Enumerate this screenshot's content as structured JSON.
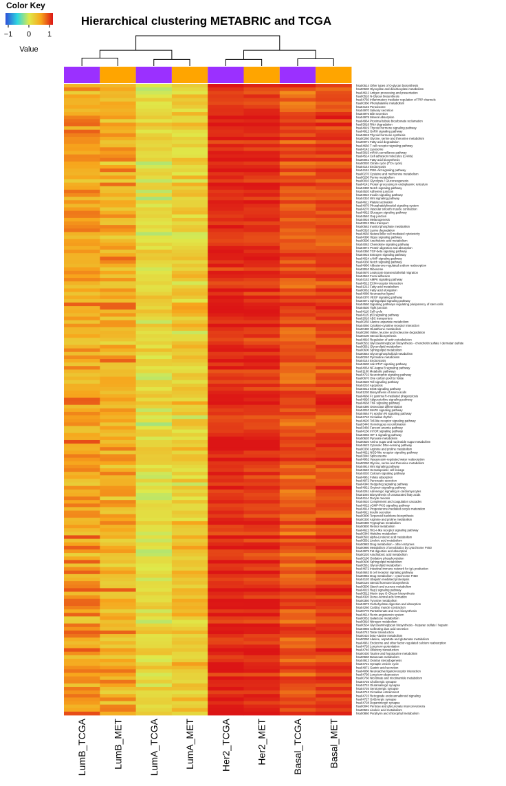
{
  "color_key": {
    "title": "Color Key",
    "ticks": [
      "−1",
      "0",
      "1"
    ],
    "value_label": "Value",
    "gradient": [
      "#2f4fd8",
      "#2fd7e0",
      "#dfe94a",
      "#f7a51c",
      "#dc1515"
    ]
  },
  "chart_data": {
    "type": "heatmap",
    "title": "Hierarchical clustering METABRIC and TCGA",
    "columns": [
      "LumB_TCGA",
      "LumB_MET",
      "LumA_TCGA",
      "LumA_MET",
      "Her2_TCGA",
      "Her2_MET",
      "Basal_TCGA",
      "Basal_MET"
    ],
    "column_groups": [
      "TCGA",
      "MET",
      "TCGA",
      "MET",
      "TCGA",
      "MET",
      "TCGA",
      "MET"
    ],
    "group_colors": {
      "TCGA": "#9b30ff",
      "MET": "#ffa500"
    },
    "value_range": [
      -1,
      1
    ],
    "colormap": [
      "#2f4fd8",
      "#2fd7e0",
      "#dfe94a",
      "#f7a51c",
      "#dc1515"
    ],
    "dendrogram": {
      "leaves": [
        "LumB_TCGA",
        "LumB_MET",
        "LumA_TCGA",
        "LumA_MET",
        "Her2_TCGA",
        "Her2_MET",
        "Basal_TCGA",
        "Basal_MET"
      ],
      "merges": [
        {
          "a": 0,
          "b": 1,
          "height": 0.26
        },
        {
          "a": 2,
          "b": 3,
          "height": 0.22
        },
        {
          "a": 4,
          "b": 5,
          "height": 0.22
        },
        {
          "a": 6,
          "b": 7,
          "height": 0.24
        },
        {
          "a": 8,
          "b": 9,
          "height": 0.52
        },
        {
          "a": 10,
          "b": 11,
          "height": 0.52
        },
        {
          "a": 12,
          "b": 13,
          "height": 1.0
        }
      ]
    },
    "column_profiles": {
      "LumB_TCGA": {
        "mean": 0.5,
        "spread": 0.22
      },
      "LumB_MET": {
        "mean": 0.42,
        "spread": 0.24
      },
      "LumA_TCGA": {
        "mean": 0.1,
        "spread": 0.18
      },
      "LumA_MET": {
        "mean": 0.22,
        "spread": 0.22
      },
      "Her2_TCGA": {
        "mean": 0.93,
        "spread": 0.05
      },
      "Her2_MET": {
        "mean": 0.91,
        "spread": 0.06
      },
      "Basal_TCGA": {
        "mean": 0.78,
        "spread": 0.1
      },
      "Basal_MET": {
        "mean": 0.83,
        "spread": 0.09
      }
    },
    "rows": [
      "hsa00514 Other types of O-glycan biosynthesis",
      "hsa00630 Glyoxylate and dicarboxylate metabolism",
      "hsa04612 Antigen processing and presentation",
      "hsa00510 N-Glycan biosynthesis",
      "hsa04750 Inflammatory mediator regulation of TRP channels",
      "hsa00360 Phenylalanine metabolism",
      "hsa04146 Peroxisome",
      "hsa04970 Salivary secretion",
      "hsa04976 Bile secretion",
      "hsa04978 Mineral absorption",
      "hsa04964 Proximal tubule bicarbonate reclamation",
      "hsa03018 RNA degradation",
      "hsa04919 Thyroid hormone signaling pathway",
      "hsa04912 GnRH signaling pathway",
      "hsa04918 Thyroid hormone synthesis",
      "hsa00260 Glycine, serine and threonine metabolism",
      "hsa00071 Fatty acid degradation",
      "hsa04660 T cell receptor signaling pathway",
      "hsa04142 Lysosome",
      "hsa03015 mRNA surveillance pathway",
      "hsa04514 Cell adhesion molecules (CAMs)",
      "hsa00061 Fatty acid biosynthesis",
      "hsa00020 Citrate cycle (TCA cycle)",
      "hsa04144 Endocytosis",
      "hsa04151 PI3K-Akt signaling pathway",
      "hsa00270 Cysteine and methionine metabolism",
      "hsa00230 Purine metabolism",
      "hsa00010 Glycolysis / Gluconeogenesis",
      "hsa04141 Protein processing in endoplasmic reticulum",
      "hsa04330 Notch signaling pathway",
      "hsa04520 Adherens junction",
      "hsa04910 Insulin signaling pathway",
      "hsa04310 Wnt signaling pathway",
      "hsa04611 Platelet activation",
      "hsa04070 Phosphatidylinositol signaling system",
      "hsa04270 Vascular smooth muscle contraction",
      "hsa04922 Glucagon signaling pathway",
      "hsa04540 Gap junction",
      "hsa04916 Melanogenesis",
      "hsa03013 RNA transport",
      "hsa00562 Inositol phosphate metabolism",
      "hsa00310 Lysine degradation",
      "hsa04650 Natural killer cell mediated cytotoxicity",
      "hsa04390 Hippo signaling pathway",
      "hsa00590 Arachidonic acid metabolism",
      "hsa04062 Chemokine signaling pathway",
      "hsa04974 Protein digestion and absorption",
      "hsa04350 TGF-beta signaling pathway",
      "hsa04915 Estrogen signaling pathway",
      "hsa04024 cAMP signaling pathway",
      "hsa04330 Notch signaling pathway",
      "hsa04960 Aldosterone-regulated sodium reabsorption",
      "hsa03010 Ribosome",
      "hsa04670 Leukocyte transendothelial migration",
      "hsa04510 Focal adhesion",
      "hsa04152 AMPK signaling pathway",
      "hsa04512 ECM-receptor interaction",
      "hsa01212 Fatty acid metabolism",
      "hsa00062 Fatty acid elongation",
      "hsa04080 Neuroactive ligand",
      "hsa04370 VEGF signaling pathway",
      "hsa04071 Sphingolipid signaling pathway",
      "hsa04550 Signaling pathways regulating pluripotency of stem cells",
      "hsa04530 Tight junction",
      "hsa04110 Cell cycle",
      "hsa04115 p53 signaling pathway",
      "hsa02010 ABC transporters",
      "hsa00250 Alanine aspartate metabolism",
      "hsa04060 Cytokine-cytokine receptor interaction",
      "hsa00480 Glutathione metabolism",
      "hsa00280 Valine, leucine and isoleucine degradation",
      "hsa00100 Steroid biosynthesis",
      "hsa04810 Regulation of actin cytoskeleton",
      "hsa00532 Glycosaminoglycan biosynthesis - chondroitin sulfate / dermatan sulfate",
      "hsa00561 Glycerolipid metabolism",
      "hsa00600 Sphingolipid metabolism",
      "hsa00564 Glycerophospholipid metabolism",
      "hsa00240 Pyrimidine metabolism",
      "hsa04144 Endocytosis",
      "hsa04630 Jak-STAT signaling pathway",
      "hsa04064 NF-kappa B signaling pathway",
      "hsa01100 Metabolic pathways",
      "hsa04722 Neurotrophin signaling pathway",
      "hsa00670 One carbon pool by folate",
      "hsa04620 Toll signaling pathway",
      "hsa04210 Apoptosis",
      "hsa04012 ErbB signaling pathway",
      "hsa01230 Biosynthesis of amino acids",
      "hsa04666 Fc gamma R-mediated phagocytosis",
      "hsa04920 Adipocytokine signaling pathway",
      "hsa04668 TNF signaling pathway",
      "hsa04380 Osteoclast differentiation",
      "hsa04010 MAPK signaling pathway",
      "hsa04664 Fc epsilon RI signaling pathway",
      "hsa04710 Circadian rhythm",
      "hsa04620 Toll-like receptor signaling pathway",
      "hsa03440 Homologous recombination",
      "hsa03460 Fanconi anemia pathway",
      "hsa04150 mTOR signaling pathway",
      "hsa04066 HIF-1 signaling pathway",
      "hsa00620 Pyruvate metabolism",
      "hsa00520 Amino sugar and nucleotide sugar metabolism",
      "hsa04623 Cytosolic DNA-sensing pathway",
      "hsa00330 Arginine and proline metabolism",
      "hsa04621 NOD-like receptor signaling pathway",
      "hsa03040 Spliceosome",
      "hsa04962 Vasopressin-regulated water reabsorption",
      "hsa00260 Glycine, serine and threonine metabolism",
      "hsa04914 Wnt signaling pathway",
      "hsa04640 Hematopoietic cell lineage",
      "hsa04020 Calcium signaling pathway",
      "hsa04961 Folate absorption",
      "hsa04972 Pancreatic secretion",
      "hsa04340 Hedgehog signaling pathway",
      "hsa04921 Oxytocin signaling pathway",
      "hsa04261 Adrenergic signaling in cardiomyocytes",
      "hsa01040 Biosynthesis of unsaturated fatty acids",
      "hsa04114 Oocyte meiosis",
      "hsa04610 Complement and coagulation cascades",
      "hsa04022 cGMP-PKG signaling pathway",
      "hsa04914 Progesterone-mediated oocyte maturation",
      "hsa04911 Insulin secretion",
      "hsa00900 Terpenoid backbone biosynthesis",
      "hsa00330 Arginine and proline metabolism",
      "hsa00380 Tryptophan metabolism",
      "hsa00830 Retinol metabolism",
      "hsa04622 RIG-I-like receptor signaling pathway",
      "hsa00340 Histidine metabolism",
      "hsa00592 alpha-Linolenic acid metabolism",
      "hsa00591 Linoleic acid metabolism",
      "hsa00983 Drug metabolism - other enzymes",
      "hsa00980 Metabolism of xenobiotics by cytochrome P450",
      "hsa04975 Fat digestion and absorption",
      "hsa00220 Arachidonic acid metabolism",
      "hsa00190 Oxidative phosphorylation",
      "hsa00600 Sphingolipid metabolism",
      "hsa00561 Glycerolipid metabolism",
      "hsa04672 Intestinal immune network for IgA production",
      "hsa04662 B cell receptor signaling pathway",
      "hsa00982 Drug metabolism - cytochrome P450",
      "hsa04120 Ubiquitin mediated proteolysis",
      "hsa00140 Steroid hormone biosynthesis",
      "hsa00500 Starch and sucrose metabolism",
      "hsa04015 Rap1 signaling pathway",
      "hsa00512 Mucin type O-Glycan biosynthesis",
      "hsa04320 Dorso-ventral axis formation",
      "hsa00350 Tyrosine metabolism",
      "hsa04973 Carbohydrate digestion and absorption",
      "hsa04260 Cardiac muscle contraction",
      "hsa00770 Pantothenate and CoA biosynthesis",
      "hsa04614 Renin-angiotensin system",
      "hsa00052 Galactose metabolism",
      "hsa00910 Nitrogen metabolism",
      "hsa00534 Glycosaminoglycan biosynthesis - heparan sulfate / heparin",
      "hsa04966 Collecting duct acid secretion",
      "hsa04742 Taste transduction",
      "hsa00410 beta-Alanine metabolism",
      "hsa00250 Alanine, aspartate and glutamate metabolism",
      "hsa04961 Endocrine and other factor-regulated calcium reabsorption",
      "hsa04720 Long-term potentiation",
      "hsa04740 Olfactory transduction",
      "hsa00430 Taurine and hypotaurine metabolism",
      "hsa00650 Butanoate metabolism",
      "hsa04913 Ovarian steroidogenesis",
      "hsa04721 Synaptic vesicle cycle",
      "hsa04971 Gastric acid secretion",
      "hsa04080 Neuroactive ligand-receptor interaction",
      "hsa04730 Long-term depression",
      "hsa00760 Nicotinate and nicotinamide metabolism",
      "hsa04725 Cholinergic synapse",
      "hsa04724 Glutamatergic synapse",
      "hsa04726 Serotonergic synapse",
      "hsa04713 Circadian entrainment",
      "hsa04723 Retrograde endocannabinoid signaling",
      "hsa04727 GABAergic synapse",
      "hsa04728 Dopaminergic synapse",
      "hsa00040 Pentose and glucuronate interconversions",
      "hsa00591 Linoleic acid metabolism",
      "hsa00860 Porphyrin and chlorophyll metabolism"
    ]
  }
}
